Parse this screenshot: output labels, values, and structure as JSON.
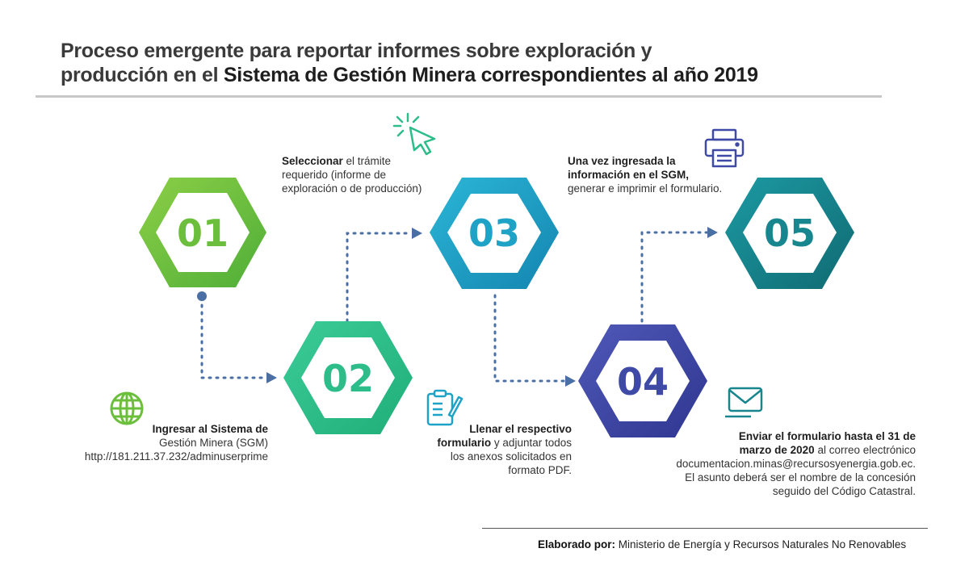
{
  "title": {
    "line1": "Proceso emergente para reportar informes sobre exploración y",
    "line2_prefix": "producción en el ",
    "line2_strong": "Sistema de Gestión Minera correspondientes al año 2019"
  },
  "steps": [
    {
      "number": "01",
      "color": "#6cbf3c",
      "text_bold": "Ingresar al Sistema de",
      "text_line2": "Gestión Minera (SGM)",
      "text_line3": "http://181.211.37.232/adminuserprime",
      "icon": "globe-icon"
    },
    {
      "number": "02",
      "color": "#2dbd8a",
      "text_bold": "Llenar el respectivo",
      "text_bold2": "formulario",
      "text_rest": " y adjuntar todos",
      "text_line3": "los anexos solicitados en",
      "text_line4": "formato PDF.",
      "icon": "clipboard-icon"
    },
    {
      "number": "03",
      "color": "#1ea3c7",
      "text_bold": "Seleccionar",
      "text_rest": " el trámite",
      "text_line2": "requerido (informe de",
      "text_line3": "exploración o de producción)",
      "icon": "cursor-click-icon"
    },
    {
      "number": "04",
      "color": "#3f4aa6",
      "text_bold": "Enviar el formulario hasta el 31 de",
      "text_bold2": "marzo de 2020",
      "text_rest": " al correo electrónico",
      "text_line3": "documentacion.minas@recursosyenergia.gob.ec.",
      "text_line4": "El asunto deberá ser el nombre de la concesión",
      "text_line5": "seguido del Código Catastral.",
      "icon": "email-icon"
    },
    {
      "number": "05",
      "color": "#17868f",
      "text_bold": "Una vez ingresada la",
      "text_bold2": "información en el SGM,",
      "text_line3": "generar e imprimir el formulario.",
      "icon": "printer-icon"
    }
  ],
  "colors": {
    "connector": "#4a6fa5",
    "title": "#3a3a3a"
  },
  "footer": {
    "label": "Elaborado por:",
    "value": " Ministerio de Energía y Recursos Naturales No Renovables"
  }
}
